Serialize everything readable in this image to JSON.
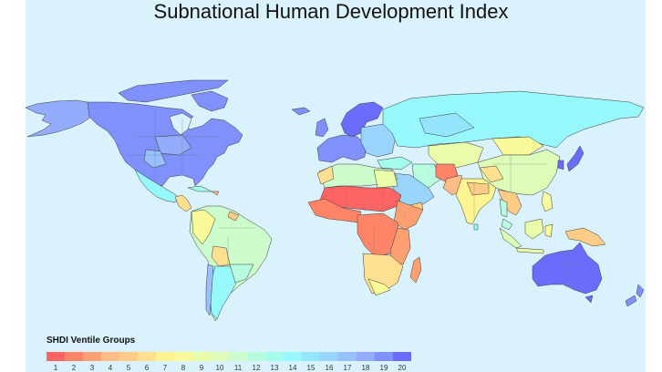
{
  "title": "Subnational Human Development Index",
  "legend": {
    "title": "SHDI Ventile Groups",
    "groups": [
      {
        "label": "1",
        "color": "#ff6464"
      },
      {
        "label": "2",
        "color": "#ff8468"
      },
      {
        "label": "3",
        "color": "#ffa072"
      },
      {
        "label": "4",
        "color": "#ffbc84"
      },
      {
        "label": "5",
        "color": "#ffcc88"
      },
      {
        "label": "6",
        "color": "#ffe090"
      },
      {
        "label": "7",
        "color": "#fff492"
      },
      {
        "label": "8",
        "color": "#f8fa9a"
      },
      {
        "label": "9",
        "color": "#e8fcaa"
      },
      {
        "label": "10",
        "color": "#dcfcb8"
      },
      {
        "label": "11",
        "color": "#ccfccc"
      },
      {
        "label": "12",
        "color": "#b8fce0"
      },
      {
        "label": "13",
        "color": "#a4fcec"
      },
      {
        "label": "14",
        "color": "#96f8fa"
      },
      {
        "label": "15",
        "color": "#94e4fc"
      },
      {
        "label": "16",
        "color": "#98d4fc"
      },
      {
        "label": "17",
        "color": "#98c0fc"
      },
      {
        "label": "18",
        "color": "#94acfc"
      },
      {
        "label": "19",
        "color": "#8090fc"
      },
      {
        "label": "20",
        "color": "#6c6cfc"
      }
    ]
  },
  "map": {
    "background": "#daf2fc",
    "regions": [
      {
        "name": "North America (USA/Canada)",
        "group": 19
      },
      {
        "name": "Alaska",
        "group": 18
      },
      {
        "name": "Mexico",
        "group": 14
      },
      {
        "name": "Central America",
        "group": 7
      },
      {
        "name": "Caribbean",
        "group": 13
      },
      {
        "name": "South America north",
        "group": 9
      },
      {
        "name": "Brazil",
        "group": 12
      },
      {
        "name": "Bolivia/Paraguay",
        "group": 6
      },
      {
        "name": "Southern Cone",
        "group": 14
      },
      {
        "name": "Chile",
        "group": 17
      },
      {
        "name": "Europe west",
        "group": 19
      },
      {
        "name": "Scandinavia",
        "group": 20
      },
      {
        "name": "Eastern Europe",
        "group": 16
      },
      {
        "name": "Russia",
        "group": 15
      },
      {
        "name": "North Africa",
        "group": 11
      },
      {
        "name": "Sahel",
        "group": 1
      },
      {
        "name": "West Africa",
        "group": 2
      },
      {
        "name": "Central Africa",
        "group": 2
      },
      {
        "name": "East Africa",
        "group": 3
      },
      {
        "name": "Southern Africa",
        "group": 7
      },
      {
        "name": "Madagascar",
        "group": 3
      },
      {
        "name": "Arabian Peninsula",
        "group": 16
      },
      {
        "name": "Iran/Turkey",
        "group": 13
      },
      {
        "name": "Afghanistan/Pakistan",
        "group": 3
      },
      {
        "name": "India",
        "group": 7
      },
      {
        "name": "Central Asia",
        "group": 9
      },
      {
        "name": "China",
        "group": 10
      },
      {
        "name": "Mongolia",
        "group": 8
      },
      {
        "name": "Southeast Asia",
        "group": 9
      },
      {
        "name": "Japan/Korea",
        "group": 20
      },
      {
        "name": "Papua New Guinea",
        "group": 5
      },
      {
        "name": "Australia",
        "group": 20
      },
      {
        "name": "New Zealand",
        "group": 19
      }
    ]
  }
}
